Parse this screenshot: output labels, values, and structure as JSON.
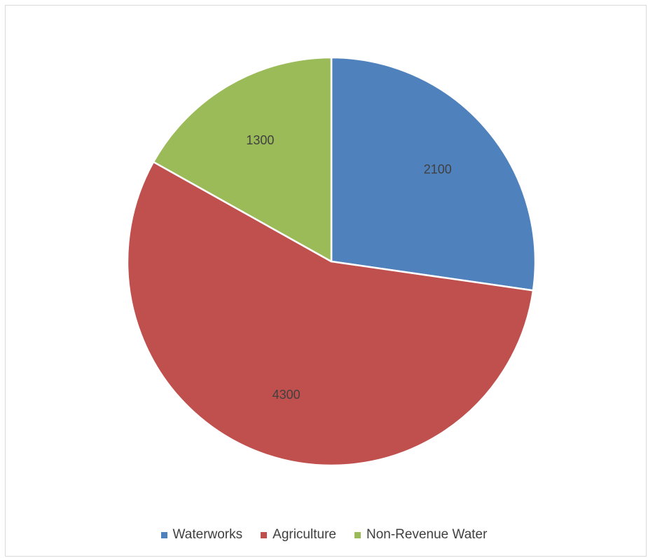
{
  "chart_data": {
    "type": "pie",
    "title": "",
    "categories": [
      "Waterworks",
      "Agriculture",
      "Non-Revenue Water"
    ],
    "values": [
      2100,
      4300,
      1300
    ],
    "data_labels": [
      "2100",
      "4300",
      "1300"
    ],
    "colors": [
      "#4f81bd",
      "#c0504d",
      "#9bbb59"
    ],
    "start_angle": "12 o'clock",
    "direction": "clockwise",
    "legend_position": "bottom"
  }
}
